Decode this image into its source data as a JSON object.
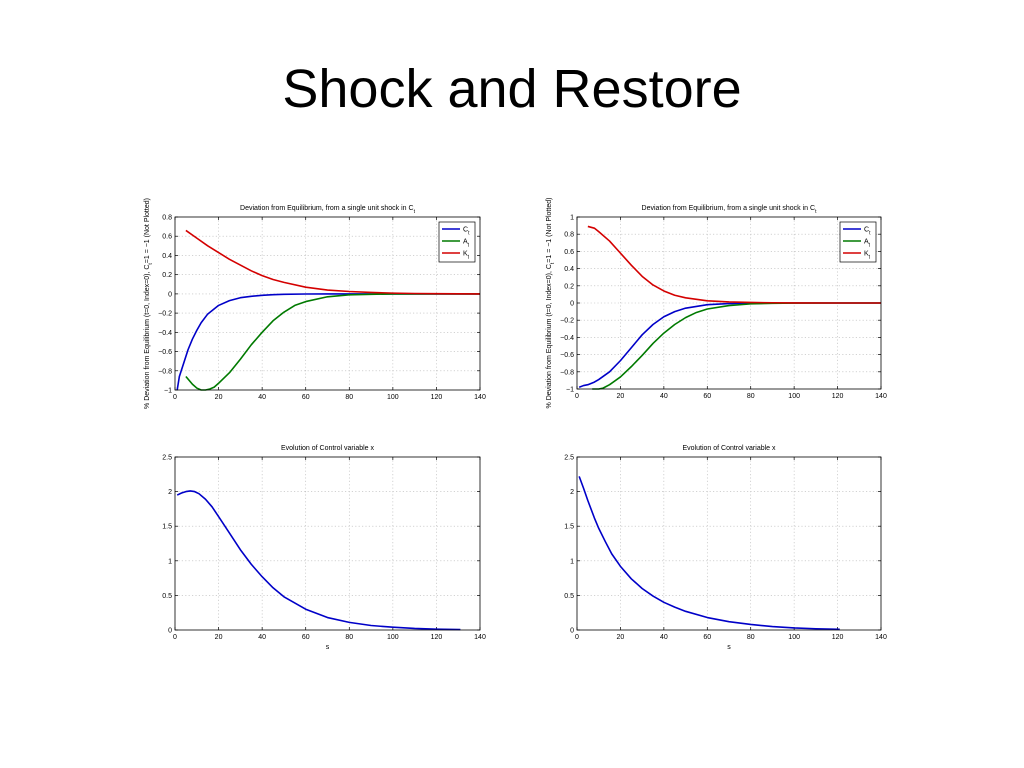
{
  "slide": {
    "title": "Shock and Restore"
  },
  "colors": {
    "C": "#0000c8",
    "A": "#007a00",
    "K": "#d40000",
    "x": "#0000c8"
  },
  "chart_data": [
    {
      "id": "top-left",
      "type": "line",
      "title": "Deviation from Equilibrium, from a single unit shock in C",
      "title_subscript": "t",
      "xlabel": "",
      "ylabel": "% Deviation from Equilibrium (t=0, Index=0), C",
      "ylabel_sub": "t",
      "ylabel_rest": "=1 = −1 (Not Plotted)",
      "xlim": [
        0,
        140
      ],
      "ylim": [
        -1,
        0.8
      ],
      "xticks": [
        0,
        20,
        40,
        60,
        80,
        100,
        120,
        140
      ],
      "yticks": [
        -1,
        -0.8,
        -0.6,
        -0.4,
        -0.2,
        0,
        0.2,
        0.4,
        0.6,
        0.8
      ],
      "grid": true,
      "legend": "top-right",
      "series": [
        {
          "name": "C",
          "sub": "t",
          "color_key": "C",
          "x": [
            1,
            2,
            4,
            6,
            8,
            10,
            12,
            15,
            20,
            25,
            30,
            35,
            40,
            45,
            50,
            60,
            70,
            80,
            100,
            120,
            140
          ],
          "y": [
            -1,
            -0.86,
            -0.72,
            -0.58,
            -0.47,
            -0.38,
            -0.3,
            -0.21,
            -0.12,
            -0.07,
            -0.04,
            -0.025,
            -0.015,
            -0.008,
            -0.004,
            -0.001,
            0,
            0,
            0,
            0,
            0
          ]
        },
        {
          "name": "A",
          "sub": "t",
          "color_key": "A",
          "x": [
            5,
            8,
            10,
            12,
            14,
            16,
            18,
            20,
            25,
            30,
            35,
            40,
            45,
            50,
            55,
            60,
            70,
            80,
            90,
            100,
            120,
            140
          ],
          "y": [
            -0.86,
            -0.94,
            -0.98,
            -1.0,
            -1.0,
            -0.99,
            -0.97,
            -0.93,
            -0.82,
            -0.68,
            -0.53,
            -0.4,
            -0.28,
            -0.19,
            -0.12,
            -0.08,
            -0.03,
            -0.01,
            -0.004,
            -0.001,
            0,
            0
          ]
        },
        {
          "name": "K",
          "sub": "t",
          "color_key": "K",
          "x": [
            5,
            10,
            15,
            20,
            25,
            30,
            35,
            40,
            45,
            50,
            60,
            70,
            80,
            90,
            100,
            110,
            120,
            140
          ],
          "y": [
            0.66,
            0.58,
            0.5,
            0.43,
            0.36,
            0.3,
            0.24,
            0.19,
            0.15,
            0.12,
            0.07,
            0.04,
            0.025,
            0.015,
            0.008,
            0.004,
            0.002,
            0
          ]
        }
      ]
    },
    {
      "id": "top-right",
      "type": "line",
      "title": "Deviation from Equilibrium, from a single unit shock in C",
      "title_subscript": "t",
      "xlabel": "",
      "ylabel": "% Deviation from Equilibrium (t=0, Index=0), C",
      "ylabel_sub": "t",
      "ylabel_rest": "=1 = −1 (Not Plotted)",
      "xlim": [
        0,
        140
      ],
      "ylim": [
        -1,
        1
      ],
      "xticks": [
        0,
        20,
        40,
        60,
        80,
        100,
        120,
        140
      ],
      "yticks": [
        -1,
        -0.8,
        -0.6,
        -0.4,
        -0.2,
        0,
        0.2,
        0.4,
        0.6,
        0.8,
        1
      ],
      "grid": true,
      "legend": "top-right",
      "series": [
        {
          "name": "C",
          "sub": "t",
          "color_key": "C",
          "x": [
            1,
            3,
            5,
            8,
            10,
            15,
            20,
            25,
            30,
            35,
            40,
            45,
            50,
            60,
            70,
            80,
            100,
            120,
            140
          ],
          "y": [
            -0.98,
            -0.96,
            -0.95,
            -0.92,
            -0.89,
            -0.8,
            -0.67,
            -0.52,
            -0.37,
            -0.25,
            -0.16,
            -0.1,
            -0.06,
            -0.02,
            -0.006,
            -0.002,
            0,
            0,
            0
          ]
        },
        {
          "name": "A",
          "sub": "t",
          "color_key": "A",
          "x": [
            7,
            10,
            12,
            15,
            20,
            25,
            30,
            35,
            40,
            45,
            50,
            55,
            60,
            70,
            80,
            90,
            100,
            120,
            140
          ],
          "y": [
            -1.0,
            -1.0,
            -0.99,
            -0.95,
            -0.86,
            -0.74,
            -0.61,
            -0.47,
            -0.35,
            -0.25,
            -0.17,
            -0.11,
            -0.07,
            -0.03,
            -0.01,
            -0.004,
            -0.001,
            0,
            0
          ]
        },
        {
          "name": "K",
          "sub": "t",
          "color_key": "K",
          "x": [
            5,
            8,
            10,
            15,
            20,
            25,
            30,
            35,
            40,
            45,
            50,
            60,
            70,
            80,
            90,
            100,
            120,
            140
          ],
          "y": [
            0.89,
            0.87,
            0.83,
            0.72,
            0.58,
            0.44,
            0.31,
            0.21,
            0.14,
            0.09,
            0.06,
            0.025,
            0.012,
            0.006,
            0.003,
            0.001,
            0,
            0
          ]
        }
      ]
    },
    {
      "id": "bottom-left",
      "type": "line",
      "title": "Evolution of Control variable x",
      "xlabel": "s",
      "ylabel": "",
      "xlim": [
        0,
        140
      ],
      "ylim": [
        0,
        2.5
      ],
      "xticks": [
        0,
        20,
        40,
        60,
        80,
        100,
        120,
        140
      ],
      "yticks": [
        0,
        0.5,
        1,
        1.5,
        2,
        2.5
      ],
      "grid": true,
      "legend": "none",
      "series": [
        {
          "color_key": "x",
          "x": [
            1,
            3,
            5,
            7,
            9,
            11,
            14,
            17,
            20,
            25,
            30,
            35,
            40,
            45,
            50,
            60,
            70,
            80,
            90,
            100,
            110,
            120,
            131
          ],
          "y": [
            1.95,
            1.98,
            2.0,
            2.01,
            2.0,
            1.97,
            1.89,
            1.78,
            1.64,
            1.4,
            1.16,
            0.95,
            0.77,
            0.61,
            0.48,
            0.3,
            0.18,
            0.11,
            0.065,
            0.04,
            0.022,
            0.012,
            0.006
          ]
        }
      ]
    },
    {
      "id": "bottom-right",
      "type": "line",
      "title": "Evolution of Control variable x",
      "xlabel": "s",
      "ylabel": "",
      "xlim": [
        0,
        140
      ],
      "ylim": [
        0,
        2.5
      ],
      "xticks": [
        0,
        20,
        40,
        60,
        80,
        100,
        120,
        140
      ],
      "yticks": [
        0,
        0.5,
        1,
        1.5,
        2,
        2.5
      ],
      "grid": true,
      "legend": "none",
      "series": [
        {
          "color_key": "x",
          "x": [
            1,
            3,
            5,
            8,
            10,
            13,
            16,
            20,
            25,
            30,
            35,
            40,
            45,
            50,
            60,
            70,
            80,
            90,
            100,
            110,
            121
          ],
          "y": [
            2.22,
            2.05,
            1.87,
            1.62,
            1.47,
            1.28,
            1.1,
            0.92,
            0.74,
            0.6,
            0.49,
            0.4,
            0.33,
            0.27,
            0.18,
            0.12,
            0.08,
            0.05,
            0.03,
            0.018,
            0.01
          ]
        }
      ]
    }
  ]
}
